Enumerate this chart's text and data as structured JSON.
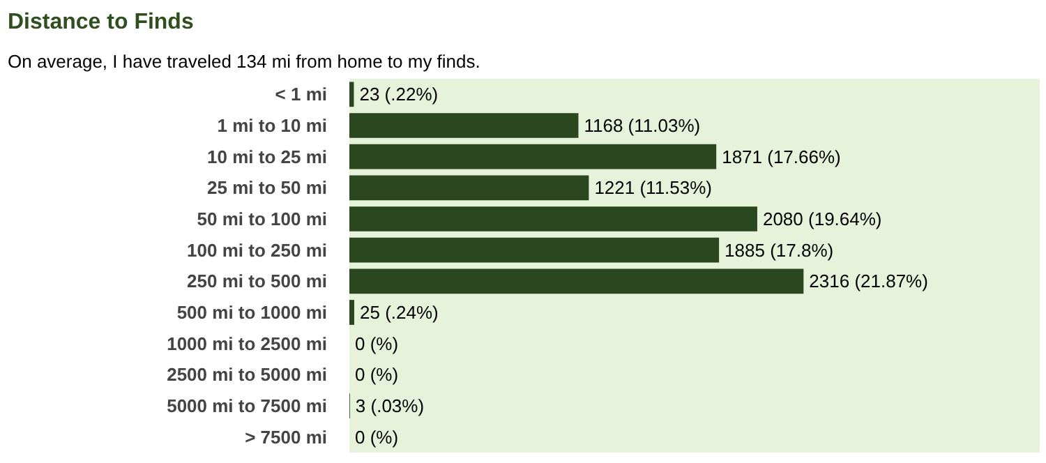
{
  "chart_data": {
    "type": "bar",
    "orientation": "horizontal",
    "title": "Distance to Finds",
    "subtitle": "On average, I have traveled 134 mi from home to my finds.",
    "categories": [
      "< 1 mi",
      "1 mi to 10 mi",
      "10 mi to 25 mi",
      "25 mi to 50 mi",
      "50 mi to 100 mi",
      "100 mi to 250 mi",
      "250 mi to 500 mi",
      "500 mi to 1000 mi",
      "1000 mi to 2500 mi",
      "2500 mi to 5000 mi",
      "5000 mi to 7500 mi",
      "> 7500 mi"
    ],
    "values": [
      23,
      1168,
      1871,
      1221,
      2080,
      1885,
      2316,
      25,
      0,
      0,
      3,
      0
    ],
    "value_labels": [
      "23 (.22%)",
      "1168 (11.03%)",
      "1871 (17.66%)",
      "1221 (11.53%)",
      "2080 (19.64%)",
      "1885 (17.8%)",
      "2316 (21.87%)",
      "25 (.24%)",
      "0 (%)",
      "0 (%)",
      "3 (.03%)",
      "0 (%)"
    ],
    "color": "#2a4720",
    "grid": false
  }
}
